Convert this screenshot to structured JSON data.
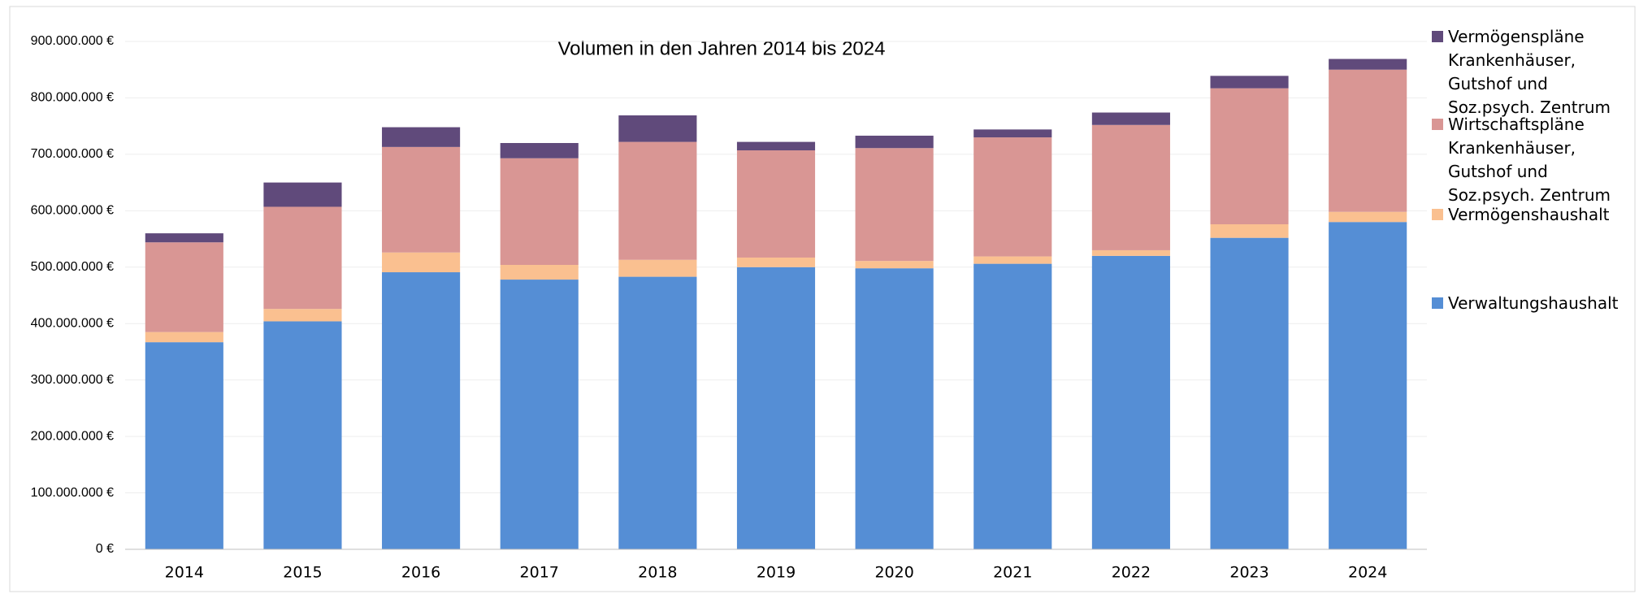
{
  "chart_data": {
    "type": "bar",
    "stacked": true,
    "title": "Volumen in den Jahren 2014 bis 2024",
    "categories": [
      "2014",
      "2015",
      "2016",
      "2017",
      "2018",
      "2019",
      "2020",
      "2021",
      "2022",
      "2023",
      "2024"
    ],
    "series": [
      {
        "name": "Verwaltungshaushalt",
        "color": "#558ed5",
        "values": [
          367000000,
          404000000,
          491000000,
          478000000,
          483000000,
          500000000,
          498000000,
          506000000,
          520000000,
          552000000,
          580000000
        ]
      },
      {
        "name": "Vermögenshaushalt",
        "color": "#fac090",
        "values": [
          18000000,
          22000000,
          35000000,
          26000000,
          30000000,
          17000000,
          13000000,
          13000000,
          10000000,
          24000000,
          18000000
        ]
      },
      {
        "name": "Wirtschaftspläne Krankenhäuser, Gutshof und Soz.psych. Zentrum",
        "color": "#d99694",
        "values": [
          159000000,
          181000000,
          187000000,
          189000000,
          209000000,
          190000000,
          200000000,
          211000000,
          222000000,
          241000000,
          252000000
        ]
      },
      {
        "name": "Vermögenspläne Krankenhäuser, Gutshof und Soz.psych. Zentrum",
        "color": "#604a7b",
        "values": [
          16000000,
          43000000,
          35000000,
          27000000,
          47000000,
          15000000,
          22000000,
          14000000,
          22000000,
          22000000,
          19000000
        ]
      }
    ],
    "ylim": [
      0,
      900000000
    ],
    "yticks": [
      {
        "value": 0,
        "label": "0 €"
      },
      {
        "value": 100000000,
        "label": "100.000.000 €"
      },
      {
        "value": 200000000,
        "label": "200.000.000 €"
      },
      {
        "value": 300000000,
        "label": "300.000.000 €"
      },
      {
        "value": 400000000,
        "label": "400.000.000 €"
      },
      {
        "value": 500000000,
        "label": "500.000.000 €"
      },
      {
        "value": 600000000,
        "label": "600.000.000 €"
      },
      {
        "value": 700000000,
        "label": "700.000.000 €"
      },
      {
        "value": 800000000,
        "label": "800.000.000 €"
      },
      {
        "value": 900000000,
        "label": "900.000.000 €"
      }
    ],
    "grid": true,
    "legend": "right"
  }
}
